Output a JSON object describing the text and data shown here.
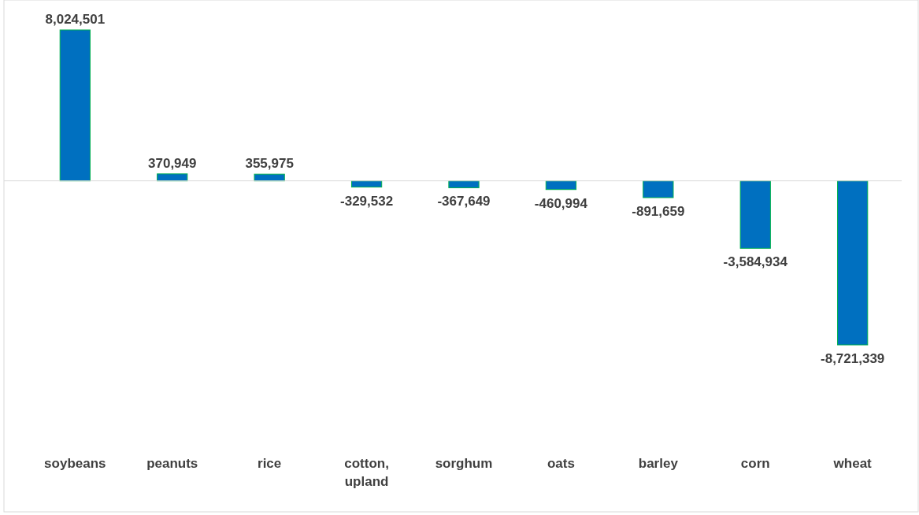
{
  "chart_data": {
    "type": "bar",
    "categories": [
      "soybeans",
      "peanuts",
      "rice",
      "cotton, upland",
      "sorghum",
      "oats",
      "barley",
      "corn",
      "wheat"
    ],
    "values": [
      8024501,
      370949,
      355975,
      -329532,
      -367649,
      -460994,
      -891659,
      -3584934,
      -8721339
    ],
    "value_labels": [
      "8,024,501",
      "370,949",
      "355,975",
      "-329,532",
      "-367,649",
      "-460,994",
      "-891,659",
      "-3,584,934",
      "-8,721,339"
    ],
    "color": "#0070c0"
  }
}
